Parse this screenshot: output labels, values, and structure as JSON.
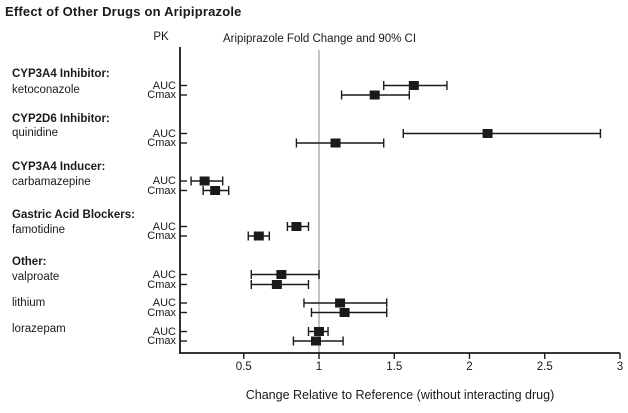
{
  "title": "Effect of Other Drugs on Aripiprazole",
  "chart_data": {
    "type": "scatter",
    "subtype": "forest-plot-with-error-bars",
    "pk_header": "PK",
    "value_header": "Aripiprazole Fold Change and 90% CI",
    "xlabel": "Change Relative to Reference (without interacting drug)",
    "x_ticks": [
      0.5,
      1,
      1.5,
      2,
      2.5,
      3
    ],
    "xlim": [
      0.08,
      3.0
    ],
    "reference_line": 1.0,
    "grid": "off",
    "metrics": [
      "AUC",
      "Cmax"
    ],
    "groups": [
      {
        "header": "CYP3A4 Inhibitor:",
        "drugs": [
          {
            "name": "ketoconazole",
            "auc": {
              "value": 1.63,
              "lo": 1.43,
              "hi": 1.85
            },
            "cmax": {
              "value": 1.37,
              "lo": 1.15,
              "hi": 1.6
            }
          }
        ]
      },
      {
        "header": "CYP2D6 Inhibitor:",
        "drugs": [
          {
            "name": "quinidine",
            "auc": {
              "value": 2.12,
              "lo": 1.56,
              "hi": 2.87
            },
            "cmax": {
              "value": 1.11,
              "lo": 0.85,
              "hi": 1.43
            }
          }
        ]
      },
      {
        "header": "CYP3A4 Inducer:",
        "drugs": [
          {
            "name": "carbamazepine",
            "auc": {
              "value": 0.24,
              "lo": 0.15,
              "hi": 0.36
            },
            "cmax": {
              "value": 0.31,
              "lo": 0.23,
              "hi": 0.4
            }
          }
        ]
      },
      {
        "header": "Gastric Acid Blockers:",
        "drugs": [
          {
            "name": "famotidine",
            "auc": {
              "value": 0.85,
              "lo": 0.79,
              "hi": 0.93
            },
            "cmax": {
              "value": 0.6,
              "lo": 0.53,
              "hi": 0.67
            }
          }
        ]
      },
      {
        "header": "Other:",
        "drugs": [
          {
            "name": "valproate",
            "auc": {
              "value": 0.75,
              "lo": 0.55,
              "hi": 1.0
            },
            "cmax": {
              "value": 0.72,
              "lo": 0.55,
              "hi": 0.93
            }
          },
          {
            "name": "lithium",
            "auc": {
              "value": 1.14,
              "lo": 0.9,
              "hi": 1.45
            },
            "cmax": {
              "value": 1.17,
              "lo": 0.95,
              "hi": 1.45
            }
          },
          {
            "name": "lorazepam",
            "auc": {
              "value": 1.0,
              "lo": 0.93,
              "hi": 1.06
            },
            "cmax": {
              "value": 0.98,
              "lo": 0.83,
              "hi": 1.16
            }
          }
        ]
      }
    ],
    "colors": {
      "marker": "#1a1a1a",
      "axis": "#1a1a1a",
      "reference_line": "#c4c4c4",
      "background": "#ffffff",
      "text": "#1a1a1a"
    }
  }
}
